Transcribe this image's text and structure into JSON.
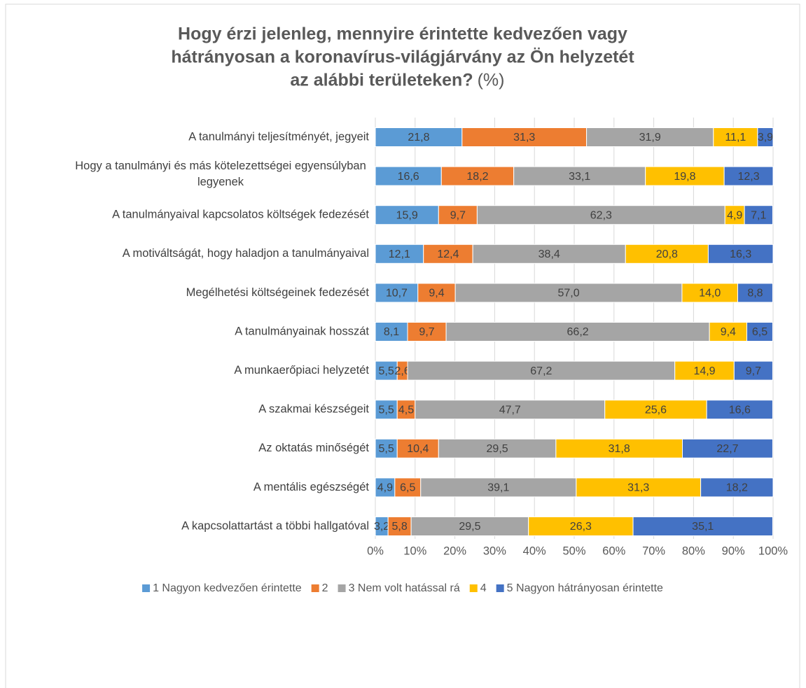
{
  "chart_data": {
    "type": "stacked_barh",
    "title": [
      "Hogy érzi jelenleg, mennyire érintette kedvezően vagy",
      "hátrányosan a koronavírus-világjárvány az Ön helyzetét",
      "az alábbi területeken?"
    ],
    "title_suffix": "(%)",
    "categories": [
      "A tanulmányi teljesítményét, jegyeit",
      "Hogy a tanulmányi és más kötelezettségei egyensúlyban legyenek",
      "A tanulmányaival kapcsolatos költségek fedezését",
      "A motiváltságát, hogy haladjon a tanulmányaival",
      "Megélhetési költségeinek fedezését",
      "A tanulmányainak hosszát",
      "A munkaerőpiaci helyzetét",
      "A szakmai készségeit",
      "Az oktatás minőségét",
      "A mentális egészségét",
      "A kapcsolattartást a többi hallgatóval"
    ],
    "series": [
      {
        "name": "1 Nagyon kedvezően érintette",
        "color": "#5b9bd5",
        "values": [
          21.8,
          16.6,
          15.9,
          12.1,
          10.7,
          8.1,
          5.5,
          5.5,
          5.5,
          4.9,
          3.2
        ],
        "value_labels": [
          "21,8",
          "16,6",
          "15,9",
          "12,1",
          "10,7",
          "8,1",
          "5,5",
          "5,5",
          "5,5",
          "4,9",
          "3,2"
        ]
      },
      {
        "name": "2",
        "color": "#ed7d31",
        "values": [
          31.3,
          18.2,
          9.7,
          12.4,
          9.4,
          9.7,
          2.6,
          4.5,
          10.4,
          6.5,
          5.8
        ],
        "value_labels": [
          "31,3",
          "18,2",
          "9,7",
          "12,4",
          "9,4",
          "9,7",
          "2,6",
          "4,5",
          "10,4",
          "6,5",
          "5,8"
        ]
      },
      {
        "name": "3 Nem volt hatással rá",
        "color": "#a5a5a5",
        "values": [
          31.9,
          33.1,
          62.3,
          38.4,
          57.0,
          66.2,
          67.2,
          47.7,
          29.5,
          39.1,
          29.5
        ],
        "value_labels": [
          "31,9",
          "33,1",
          "62,3",
          "38,4",
          "57,0",
          "66,2",
          "67,2",
          "47,7",
          "29,5",
          "39,1",
          "29,5"
        ]
      },
      {
        "name": "4",
        "color": "#ffc000",
        "values": [
          11.1,
          19.8,
          4.9,
          20.8,
          14.0,
          9.4,
          14.9,
          25.6,
          31.8,
          31.3,
          26.3
        ],
        "value_labels": [
          "11,1",
          "19,8",
          "4,9",
          "20,8",
          "14,0",
          "9,4",
          "14,9",
          "25,6",
          "31,8",
          "31,3",
          "26,3"
        ]
      },
      {
        "name": "5 Nagyon hátrányosan érintette",
        "color": "#4472c4",
        "values": [
          3.9,
          12.3,
          7.1,
          16.3,
          8.8,
          6.5,
          9.7,
          16.6,
          22.7,
          18.2,
          35.1
        ],
        "value_labels": [
          "3,9",
          "12,3",
          "7,1",
          "16,3",
          "8,8",
          "6,5",
          "9,7",
          "16,6",
          "22,7",
          "18,2",
          "35,1"
        ]
      }
    ],
    "xlim": [
      0,
      100
    ],
    "xticks": [
      {
        "value": 0,
        "label": "0%"
      },
      {
        "value": 10,
        "label": "10%"
      },
      {
        "value": 20,
        "label": "20%"
      },
      {
        "value": 30,
        "label": "30%"
      },
      {
        "value": 40,
        "label": "40%"
      },
      {
        "value": 50,
        "label": "50%"
      },
      {
        "value": 60,
        "label": "60%"
      },
      {
        "value": 70,
        "label": "70%"
      },
      {
        "value": 80,
        "label": "80%"
      },
      {
        "value": 90,
        "label": "90%"
      },
      {
        "value": 100,
        "label": "100%"
      }
    ],
    "grid": true,
    "legend": "bottom"
  }
}
